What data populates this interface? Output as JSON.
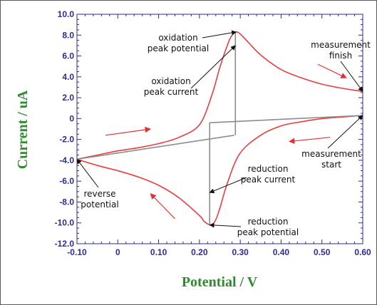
{
  "chart_data": {
    "type": "line",
    "xlabel": "Potential / V",
    "ylabel": "Current / uA",
    "xlim": [
      -0.1,
      0.6
    ],
    "ylim": [
      -12.0,
      10.0
    ],
    "x_ticks": [
      -0.1,
      0.0,
      0.1,
      0.2,
      0.3,
      0.4,
      0.5,
      0.6
    ],
    "x_tick_labels": [
      "-0.10",
      "0",
      "0.10",
      "0.20",
      "0.30",
      "0.40",
      "0.50",
      "0.60"
    ],
    "y_ticks": [
      10,
      8,
      6,
      4,
      2,
      0,
      -2,
      -4,
      -6,
      -8,
      -10,
      -12
    ],
    "y_tick_labels": [
      "10.0",
      "8.0",
      "6.0",
      "4.0",
      "2.0",
      "0",
      "-2.0",
      "-4.0",
      "-6.0",
      "-8.0",
      "-10.0",
      "-12.0"
    ],
    "grid": false,
    "colors": {
      "curve": "#ef3b3b",
      "baseline": "#8c8c8c",
      "axis": "#2b2b9a",
      "arrow_red": "#e53030",
      "arrow_black": "#111111",
      "axis_title": "#2e8b2e"
    },
    "series": [
      {
        "role": "cv-curve-reverse",
        "x": [
          0.6,
          0.55,
          0.5,
          0.45,
          0.4,
          0.35,
          0.32,
          0.3,
          0.29,
          0.28,
          0.27,
          0.25,
          0.23,
          0.2,
          0.15,
          0.1,
          0.05,
          0.0,
          -0.05,
          -0.1
        ],
        "y": [
          2.6,
          2.9,
          3.3,
          3.9,
          4.7,
          6.1,
          7.3,
          8.1,
          8.3,
          8.0,
          7.2,
          4.9,
          2.2,
          -0.6,
          -1.8,
          -2.4,
          -2.8,
          -3.1,
          -3.5,
          -3.9
        ]
      },
      {
        "role": "cv-curve-forward",
        "x": [
          -0.1,
          -0.05,
          0.0,
          0.05,
          0.1,
          0.15,
          0.2,
          0.21,
          0.22,
          0.23,
          0.24,
          0.25,
          0.27,
          0.3,
          0.35,
          0.4,
          0.45,
          0.5,
          0.55,
          0.6
        ],
        "y": [
          -3.9,
          -4.5,
          -5.0,
          -5.6,
          -6.4,
          -7.6,
          -9.3,
          -9.8,
          -10.1,
          -10.2,
          -9.7,
          -8.6,
          -6.0,
          -3.3,
          -1.6,
          -0.7,
          -0.3,
          0.0,
          0.15,
          0.3
        ]
      },
      {
        "role": "oxidation-baseline",
        "x": [
          -0.1,
          0.285
        ],
        "y": [
          -3.9,
          -1.6
        ]
      },
      {
        "role": "reduction-baseline",
        "x": [
          0.225,
          0.6
        ],
        "y": [
          -0.4,
          0.3
        ]
      }
    ],
    "peak_lines": [
      {
        "role": "oxidation-peak-current",
        "x": 0.288,
        "y_from": -1.6,
        "y_to": 8.3
      },
      {
        "role": "reduction-peak-current",
        "x": 0.225,
        "y_from": -0.4,
        "y_to": -10.2
      }
    ],
    "annotations": [
      {
        "id": "ox-peak-pot",
        "lines": [
          "oxidation",
          "peak potential"
        ],
        "target": [
          0.29,
          8.3
        ]
      },
      {
        "id": "ox-peak-cur",
        "lines": [
          "oxidation",
          "peak current"
        ],
        "target": [
          0.288,
          7.0
        ]
      },
      {
        "id": "meas-finish",
        "lines": [
          "measurement",
          "finish"
        ],
        "target": [
          0.6,
          2.6
        ]
      },
      {
        "id": "meas-start",
        "lines": [
          "measurement",
          "start"
        ],
        "target": [
          0.6,
          0.3
        ]
      },
      {
        "id": "red-peak-cur",
        "lines": [
          "reduction",
          "peak current"
        ],
        "target": [
          0.225,
          -7.1
        ]
      },
      {
        "id": "red-peak-pot",
        "lines": [
          "reduction",
          "peak potential"
        ],
        "target": [
          0.225,
          -10.2
        ]
      },
      {
        "id": "rev-pot",
        "lines": [
          "reverse",
          "potential"
        ],
        "target": [
          -0.1,
          -3.9
        ]
      }
    ],
    "direction_arrows": [
      {
        "id": "dir-top-right",
        "from": [
          0.49,
          5.2
        ],
        "to": [
          0.56,
          3.9
        ]
      },
      {
        "id": "dir-left-lower",
        "from": [
          -0.03,
          -1.6
        ],
        "to": [
          0.08,
          -1.0
        ]
      },
      {
        "id": "dir-mid-right",
        "from": [
          0.52,
          -1.8
        ],
        "to": [
          0.42,
          -2.2
        ]
      },
      {
        "id": "dir-bottom-left",
        "from": [
          0.14,
          -9.6
        ],
        "to": [
          0.08,
          -7.2
        ]
      }
    ]
  }
}
